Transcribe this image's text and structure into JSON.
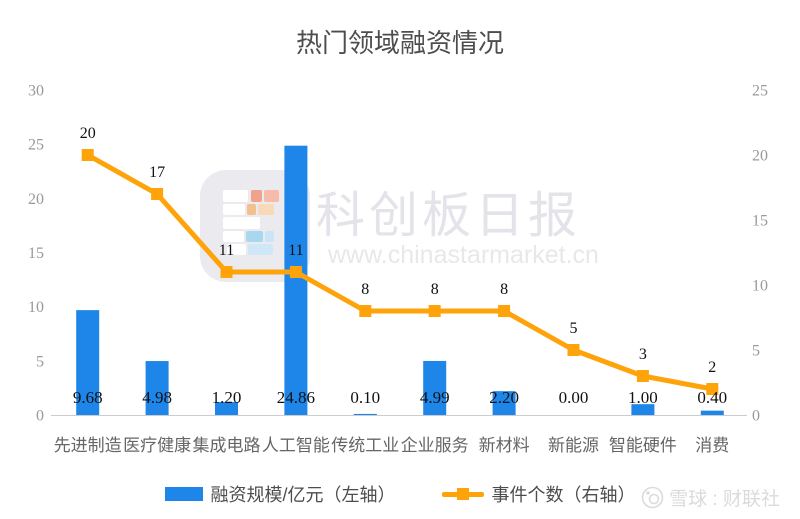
{
  "title": "热门领域融资情况",
  "chart_data": {
    "type": "bar+line",
    "categories": [
      "先进制造",
      "医疗健康",
      "集成电路",
      "人工智能",
      "传统工业",
      "企业服务",
      "新材料",
      "新能源",
      "智能硬件",
      "消费"
    ],
    "series": [
      {
        "name": "融资规模/亿元（左轴）",
        "type": "bar",
        "axis": "left",
        "values": [
          9.68,
          4.98,
          1.2,
          24.86,
          0.1,
          4.99,
          2.2,
          0.0,
          1.0,
          0.4
        ],
        "labels": [
          "9.68",
          "4.98",
          "1.20",
          "24.86",
          "0.10",
          "4.99",
          "2.20",
          "0.00",
          "1.00",
          "0.40"
        ]
      },
      {
        "name": "事件个数（右轴）",
        "type": "line",
        "axis": "right",
        "values": [
          20,
          17,
          11,
          11,
          8,
          8,
          8,
          5,
          3,
          2
        ],
        "labels": [
          "20",
          "17",
          "11",
          "11",
          "8",
          "8",
          "8",
          "5",
          "3",
          "2"
        ]
      }
    ],
    "left_axis": {
      "min": 0,
      "max": 30,
      "ticks": [
        0,
        5,
        10,
        15,
        20,
        25,
        30
      ]
    },
    "right_axis": {
      "min": 0,
      "max": 25,
      "ticks": [
        0,
        5,
        10,
        15,
        20,
        25
      ]
    },
    "grid": false,
    "legend_position": "bottom"
  },
  "legend": {
    "bar_label": "融资规模/亿元（左轴）",
    "line_label": "事件个数（右轴）"
  },
  "watermark": {
    "name": "科创板日报",
    "url": "www.chinastarmarket.cn"
  },
  "footer": {
    "credit": "雪球 : 财联社"
  },
  "colors": {
    "bar": "#1E86E8",
    "line": "#FFA30A",
    "axis": "#999999",
    "value": "#111111",
    "category": "#666666",
    "title": "#4D4D4D",
    "axisline": "#CCCCCC",
    "legend": "#4D4D4D",
    "wm_name": "#E3E3E9",
    "wm_url": "#E8E8EC",
    "footer": "#DBDBDB"
  }
}
